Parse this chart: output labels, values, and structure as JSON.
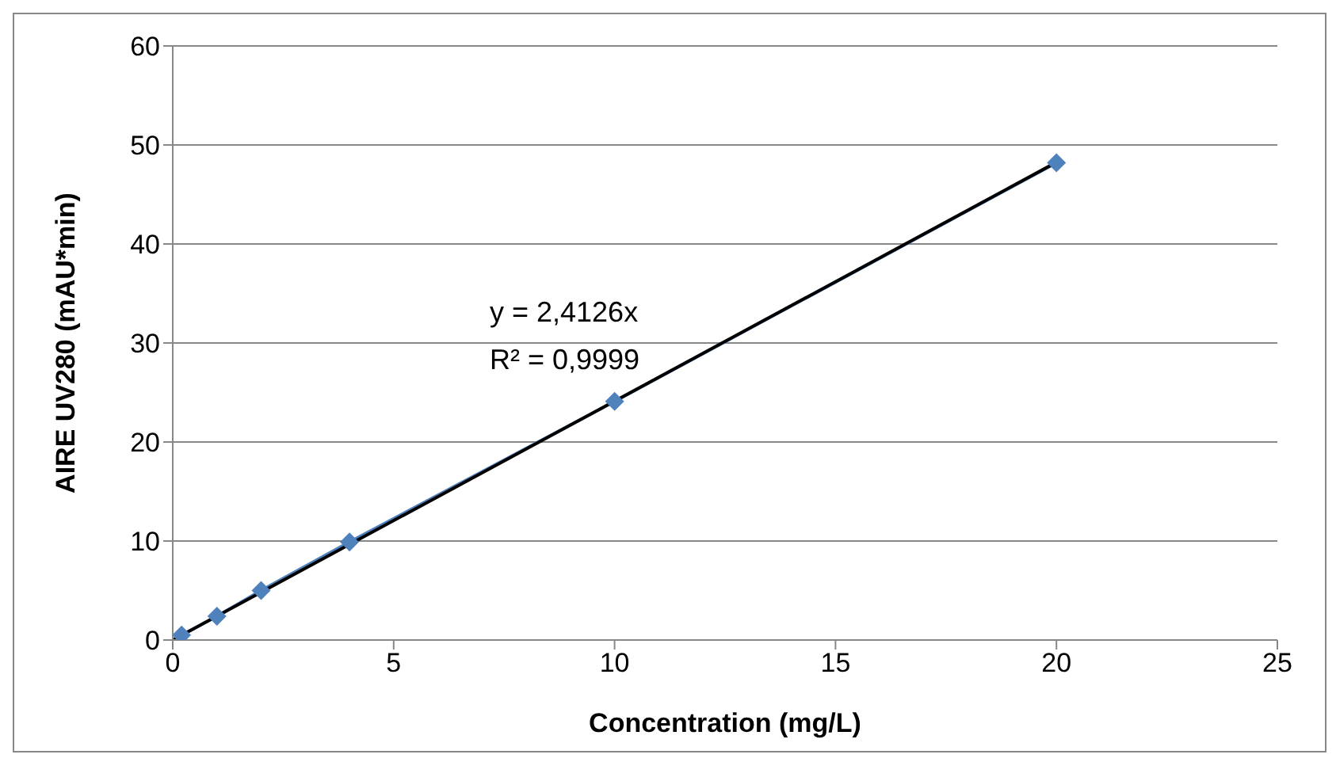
{
  "chart_data": {
    "type": "line",
    "xlabel": "Concentration (mg/L)",
    "ylabel": "AIRE UV280 (mAU*min)",
    "xlim": [
      0,
      25
    ],
    "xticks": [
      0,
      5,
      10,
      15,
      20,
      25
    ],
    "ylim": [
      0,
      60
    ],
    "yticks": [
      0,
      10,
      20,
      30,
      40,
      50,
      60
    ],
    "grid": "y",
    "marker": "diamond",
    "line_style": "solid",
    "series": [
      {
        "color": "#4f81bd",
        "x": [
          0.2,
          1,
          2,
          4,
          10,
          20
        ],
        "values": [
          0.5,
          2.4,
          5,
          9.9,
          24.1,
          48.2
        ]
      },
      {
        "color": "#000000",
        "x": [
          0,
          20
        ],
        "values": [
          0,
          48.25
        ],
        "marker": "none"
      }
    ],
    "annotations": [
      "y = 2,4126x",
      "R² = 0,9999"
    ]
  }
}
